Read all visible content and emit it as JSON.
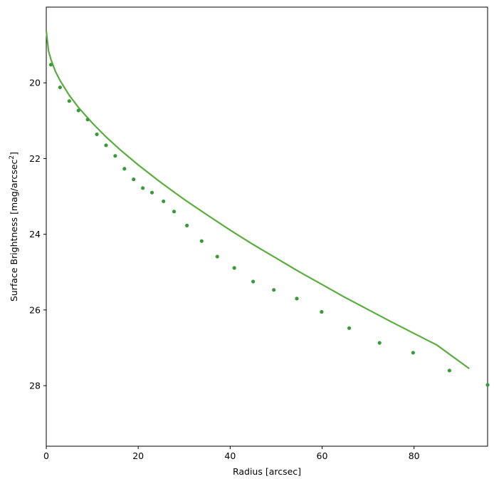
{
  "chart_data": {
    "type": "scatter",
    "xlabel": "Radius [arcsec]",
    "ylabel_main": "Surface Brightness [mag/arcsec",
    "ylabel_sup": "2",
    "ylabel_close": "]",
    "xlim": [
      0,
      96
    ],
    "ylim": [
      29.6,
      18.0
    ],
    "y_inverted": true,
    "xticks": [
      0,
      20,
      40,
      60,
      80
    ],
    "yticks": [
      20,
      22,
      24,
      26,
      28
    ],
    "grid": false,
    "point_color": "#3a9a3a",
    "line_color": "#5aad3c",
    "points": {
      "x": [
        1,
        3,
        5,
        7,
        9,
        11,
        13,
        15,
        17,
        19,
        21,
        23,
        25.5,
        27.8,
        30.6,
        33.8,
        37.2,
        40.9,
        45,
        49.5,
        54.5,
        59.9,
        65.9,
        72.5,
        79.8,
        87.7,
        96.5
      ],
      "y": [
        19.52,
        20.12,
        20.48,
        20.73,
        20.97,
        21.36,
        21.65,
        21.93,
        22.27,
        22.55,
        22.78,
        22.9,
        23.13,
        23.4,
        23.77,
        24.18,
        24.59,
        24.89,
        25.25,
        25.47,
        25.7,
        26.05,
        26.48,
        26.87,
        27.13,
        27.6,
        27.98
      ]
    },
    "model_line": {
      "x": [
        0,
        0.5,
        1,
        2,
        3,
        5,
        7,
        10,
        13,
        16,
        20,
        25,
        30,
        35,
        40,
        45,
        50,
        55,
        60,
        65,
        70,
        75,
        80,
        85,
        92
      ],
      "y": [
        18.63,
        19.16,
        19.38,
        19.7,
        19.94,
        20.33,
        20.65,
        21.06,
        21.43,
        21.76,
        22.17,
        22.64,
        23.08,
        23.49,
        23.89,
        24.27,
        24.63,
        24.99,
        25.33,
        25.67,
        25.99,
        26.31,
        26.62,
        26.93,
        27.55
      ]
    }
  }
}
